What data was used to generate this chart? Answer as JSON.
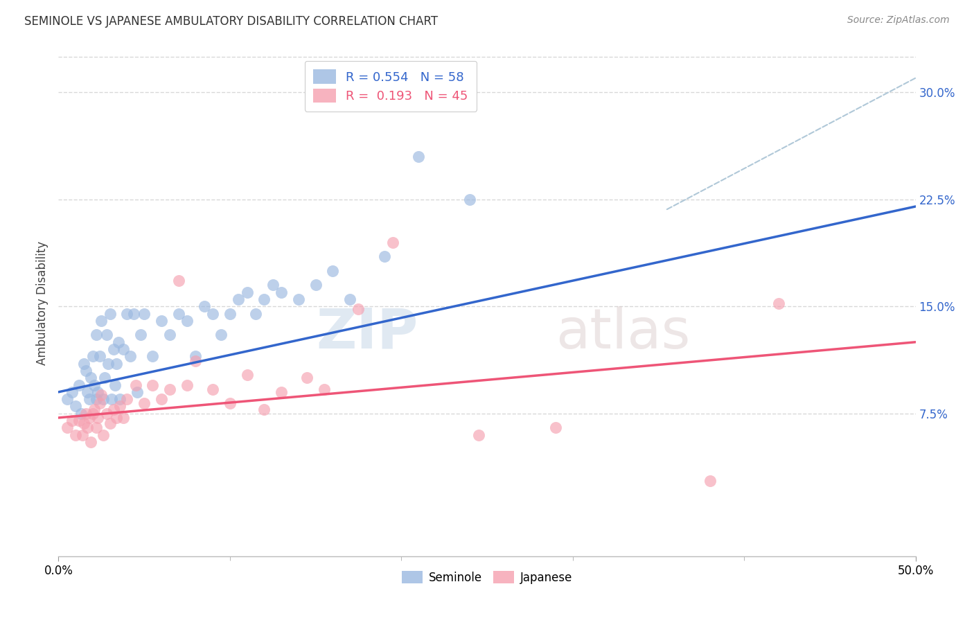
{
  "title": "SEMINOLE VS JAPANESE AMBULATORY DISABILITY CORRELATION CHART",
  "source": "Source: ZipAtlas.com",
  "ylabel": "Ambulatory Disability",
  "xlim": [
    0.0,
    0.5
  ],
  "ylim": [
    -0.025,
    0.33
  ],
  "xtick_positions": [
    0.0,
    0.5
  ],
  "xtick_labels": [
    "0.0%",
    "50.0%"
  ],
  "ytick_labels_right": [
    "7.5%",
    "15.0%",
    "22.5%",
    "30.0%"
  ],
  "ytick_values_right": [
    0.075,
    0.15,
    0.225,
    0.3
  ],
  "seminole_R": 0.554,
  "seminole_N": 58,
  "japanese_R": 0.193,
  "japanese_N": 45,
  "seminole_color": "#9ab8e0",
  "japanese_color": "#f5a0b0",
  "seminole_line_color": "#3366cc",
  "japanese_line_color": "#ee5577",
  "trend_line_color": "#b0c8d8",
  "background_color": "#ffffff",
  "grid_color": "#d8d8d8",
  "seminole_scatter_x": [
    0.005,
    0.008,
    0.01,
    0.012,
    0.013,
    0.015,
    0.016,
    0.017,
    0.018,
    0.019,
    0.02,
    0.021,
    0.022,
    0.022,
    0.023,
    0.024,
    0.025,
    0.026,
    0.027,
    0.028,
    0.029,
    0.03,
    0.031,
    0.032,
    0.033,
    0.034,
    0.035,
    0.036,
    0.038,
    0.04,
    0.042,
    0.044,
    0.046,
    0.048,
    0.05,
    0.055,
    0.06,
    0.065,
    0.07,
    0.075,
    0.08,
    0.085,
    0.09,
    0.095,
    0.1,
    0.105,
    0.11,
    0.115,
    0.12,
    0.125,
    0.13,
    0.14,
    0.15,
    0.16,
    0.17,
    0.19,
    0.21,
    0.24
  ],
  "seminole_scatter_y": [
    0.085,
    0.09,
    0.08,
    0.095,
    0.075,
    0.11,
    0.105,
    0.09,
    0.085,
    0.1,
    0.115,
    0.095,
    0.13,
    0.085,
    0.09,
    0.115,
    0.14,
    0.085,
    0.1,
    0.13,
    0.11,
    0.145,
    0.085,
    0.12,
    0.095,
    0.11,
    0.125,
    0.085,
    0.12,
    0.145,
    0.115,
    0.145,
    0.09,
    0.13,
    0.145,
    0.115,
    0.14,
    0.13,
    0.145,
    0.14,
    0.115,
    0.15,
    0.145,
    0.13,
    0.145,
    0.155,
    0.16,
    0.145,
    0.155,
    0.165,
    0.16,
    0.155,
    0.165,
    0.175,
    0.155,
    0.185,
    0.255,
    0.225
  ],
  "japanese_scatter_x": [
    0.005,
    0.008,
    0.01,
    0.012,
    0.014,
    0.015,
    0.016,
    0.017,
    0.018,
    0.019,
    0.02,
    0.021,
    0.022,
    0.023,
    0.024,
    0.025,
    0.026,
    0.028,
    0.03,
    0.032,
    0.034,
    0.036,
    0.038,
    0.04,
    0.045,
    0.05,
    0.055,
    0.06,
    0.065,
    0.07,
    0.075,
    0.08,
    0.09,
    0.1,
    0.11,
    0.12,
    0.13,
    0.145,
    0.155,
    0.175,
    0.195,
    0.245,
    0.29,
    0.38,
    0.42
  ],
  "japanese_scatter_y": [
    0.065,
    0.07,
    0.06,
    0.07,
    0.06,
    0.068,
    0.075,
    0.065,
    0.072,
    0.055,
    0.075,
    0.078,
    0.065,
    0.072,
    0.082,
    0.088,
    0.06,
    0.075,
    0.068,
    0.078,
    0.072,
    0.08,
    0.072,
    0.085,
    0.095,
    0.082,
    0.095,
    0.085,
    0.092,
    0.168,
    0.095,
    0.112,
    0.092,
    0.082,
    0.102,
    0.078,
    0.09,
    0.1,
    0.092,
    0.148,
    0.195,
    0.06,
    0.065,
    0.028,
    0.152
  ],
  "seminole_trend_x": [
    0.0,
    0.5
  ],
  "seminole_trend_y": [
    0.09,
    0.22
  ],
  "japanese_trend_x": [
    0.0,
    0.5
  ],
  "japanese_trend_y": [
    0.072,
    0.125
  ],
  "dashed_trend_x": [
    0.355,
    0.5
  ],
  "dashed_trend_y": [
    0.218,
    0.31
  ]
}
